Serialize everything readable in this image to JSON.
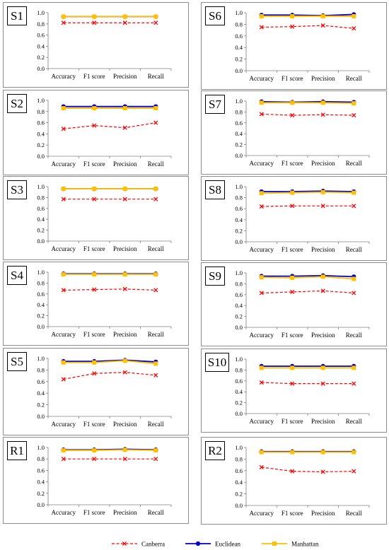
{
  "colors": {
    "canberra": "#ff0000",
    "euclidean": "#0000cc",
    "manhattan": "#ffc000"
  },
  "legend": [
    "Canberra",
    "Euclidean",
    "Manhattan"
  ],
  "chart_data": [
    {
      "type": "line",
      "title": "S1",
      "categories": [
        "Accuracy",
        "F1 score",
        "Precision",
        "Recall"
      ],
      "ylim": [
        0,
        1
      ],
      "yticks": [
        "0.0",
        "0.2",
        "0.4",
        "0.6",
        "0.8",
        "1.0"
      ],
      "series": [
        {
          "name": "Canberra",
          "values": [
            0.82,
            0.82,
            0.82,
            0.82
          ]
        },
        {
          "name": "Euclidean",
          "values": [
            0.93,
            0.93,
            0.93,
            0.93
          ]
        },
        {
          "name": "Manhattan",
          "values": [
            0.93,
            0.93,
            0.93,
            0.93
          ]
        }
      ]
    },
    {
      "type": "line",
      "title": "S6",
      "categories": [
        "Accuracy",
        "F1 score",
        "Precision",
        "Recall"
      ],
      "ylim": [
        0,
        1
      ],
      "yticks": [
        "0.0",
        "0.2",
        "0.4",
        "0.6",
        "0.8",
        "1.0"
      ],
      "series": [
        {
          "name": "Canberra",
          "values": [
            0.75,
            0.76,
            0.78,
            0.73
          ]
        },
        {
          "name": "Euclidean",
          "values": [
            0.96,
            0.96,
            0.95,
            0.97
          ]
        },
        {
          "name": "Manhattan",
          "values": [
            0.94,
            0.94,
            0.94,
            0.94
          ]
        }
      ]
    },
    {
      "type": "line",
      "title": "S2",
      "categories": [
        "Accuracy",
        "F1 score",
        "Precision",
        "Recall"
      ],
      "ylim": [
        0,
        1
      ],
      "yticks": [
        "0.0",
        "0.2",
        "0.4",
        "0.6",
        "0.8",
        "1.0"
      ],
      "series": [
        {
          "name": "Canberra",
          "values": [
            0.49,
            0.55,
            0.51,
            0.6
          ]
        },
        {
          "name": "Euclidean",
          "values": [
            0.89,
            0.89,
            0.89,
            0.89
          ]
        },
        {
          "name": "Manhattan",
          "values": [
            0.86,
            0.86,
            0.86,
            0.86
          ]
        }
      ]
    },
    {
      "type": "line",
      "title": "S7",
      "categories": [
        "Accuracy",
        "F1 score",
        "Precision",
        "Recall"
      ],
      "ylim": [
        0,
        1
      ],
      "yticks": [
        "0.0",
        "0.2",
        "0.4",
        "0.6",
        "0.8",
        "1.0"
      ],
      "series": [
        {
          "name": "Canberra",
          "values": [
            0.76,
            0.74,
            0.75,
            0.74
          ]
        },
        {
          "name": "Euclidean",
          "values": [
            0.99,
            0.98,
            0.99,
            0.98
          ]
        },
        {
          "name": "Manhattan",
          "values": [
            0.97,
            0.97,
            0.97,
            0.96
          ]
        }
      ]
    },
    {
      "type": "line",
      "title": "S3",
      "categories": [
        "Accuracy",
        "F1 score",
        "Precision",
        "Recall"
      ],
      "ylim": [
        0,
        1
      ],
      "yticks": [
        "0.0",
        "0.2",
        "0.4",
        "0.6",
        "0.8",
        "1.0"
      ],
      "series": [
        {
          "name": "Canberra",
          "values": [
            0.77,
            0.77,
            0.77,
            0.77
          ]
        },
        {
          "name": "Euclidean",
          "values": [
            0.96,
            0.96,
            0.96,
            0.96
          ]
        },
        {
          "name": "Manhattan",
          "values": [
            0.96,
            0.96,
            0.96,
            0.96
          ]
        }
      ]
    },
    {
      "type": "line",
      "title": "S8",
      "categories": [
        "Accuracy",
        "F1 score",
        "Precision",
        "Recall"
      ],
      "ylim": [
        0,
        1
      ],
      "yticks": [
        "0.0",
        "0.2",
        "0.4",
        "0.6",
        "0.8",
        "1.0"
      ],
      "series": [
        {
          "name": "Canberra",
          "values": [
            0.64,
            0.65,
            0.65,
            0.65
          ]
        },
        {
          "name": "Euclidean",
          "values": [
            0.91,
            0.91,
            0.92,
            0.91
          ]
        },
        {
          "name": "Manhattan",
          "values": [
            0.88,
            0.89,
            0.9,
            0.89
          ]
        }
      ]
    },
    {
      "type": "line",
      "title": "S4",
      "categories": [
        "Accuracy",
        "F1 score",
        "Precision",
        "Recall"
      ],
      "ylim": [
        0,
        1
      ],
      "yticks": [
        "0.0",
        "0.2",
        "0.4",
        "0.6",
        "0.8",
        "1.0"
      ],
      "series": [
        {
          "name": "Canberra",
          "values": [
            0.67,
            0.68,
            0.69,
            0.67
          ]
        },
        {
          "name": "Euclidean",
          "values": [
            0.97,
            0.97,
            0.97,
            0.97
          ]
        },
        {
          "name": "Manhattan",
          "values": [
            0.96,
            0.96,
            0.96,
            0.96
          ]
        }
      ]
    },
    {
      "type": "line",
      "title": "S9",
      "categories": [
        "Accuracy",
        "F1 score",
        "Precision",
        "Recall"
      ],
      "ylim": [
        0,
        1
      ],
      "yticks": [
        "0.0",
        "0.2",
        "0.4",
        "0.6",
        "0.8",
        "1.0"
      ],
      "series": [
        {
          "name": "Canberra",
          "values": [
            0.63,
            0.65,
            0.67,
            0.63
          ]
        },
        {
          "name": "Euclidean",
          "values": [
            0.94,
            0.94,
            0.95,
            0.93
          ]
        },
        {
          "name": "Manhattan",
          "values": [
            0.92,
            0.91,
            0.93,
            0.89
          ]
        }
      ]
    },
    {
      "type": "line",
      "title": "S5",
      "categories": [
        "Accuracy",
        "F1 score",
        "Precision",
        "Recall"
      ],
      "ylim": [
        0,
        1
      ],
      "yticks": [
        "0.0",
        "0.2",
        "0.4",
        "0.6",
        "0.8",
        "1.0"
      ],
      "series": [
        {
          "name": "Canberra",
          "values": [
            0.64,
            0.74,
            0.76,
            0.71
          ]
        },
        {
          "name": "Euclidean",
          "values": [
            0.95,
            0.95,
            0.97,
            0.94
          ]
        },
        {
          "name": "Manhattan",
          "values": [
            0.93,
            0.93,
            0.96,
            0.91
          ]
        }
      ]
    },
    {
      "type": "line",
      "title": "S10",
      "categories": [
        "Accuracy",
        "F1 score",
        "Precision",
        "Recall"
      ],
      "ylim": [
        0,
        1
      ],
      "yticks": [
        "0.0",
        "0.2",
        "0.4",
        "0.6",
        "0.8",
        "1.0"
      ],
      "series": [
        {
          "name": "Canberra",
          "values": [
            0.57,
            0.55,
            0.55,
            0.55
          ]
        },
        {
          "name": "Euclidean",
          "values": [
            0.87,
            0.87,
            0.87,
            0.87
          ]
        },
        {
          "name": "Manhattan",
          "values": [
            0.84,
            0.84,
            0.84,
            0.84
          ]
        }
      ]
    },
    {
      "type": "line",
      "title": "R1",
      "categories": [
        "Accuracy",
        "F1 score",
        "Precision",
        "Recall"
      ],
      "ylim": [
        0,
        1
      ],
      "yticks": [
        "0.0",
        "0.2",
        "0.4",
        "0.6",
        "0.8",
        "1.0"
      ],
      "series": [
        {
          "name": "Canberra",
          "values": [
            0.8,
            0.8,
            0.8,
            0.8
          ]
        },
        {
          "name": "Euclidean",
          "values": [
            0.96,
            0.96,
            0.97,
            0.96
          ]
        },
        {
          "name": "Manhattan",
          "values": [
            0.95,
            0.95,
            0.96,
            0.95
          ]
        }
      ]
    },
    {
      "type": "line",
      "title": "R2",
      "categories": [
        "Accuracy",
        "F1 score",
        "Precision",
        "Recall"
      ],
      "ylim": [
        0,
        1
      ],
      "yticks": [
        "0.0",
        "0.2",
        "0.4",
        "0.6",
        "0.8",
        "1.0"
      ],
      "series": [
        {
          "name": "Canberra",
          "values": [
            0.66,
            0.59,
            0.58,
            0.59
          ]
        },
        {
          "name": "Euclidean",
          "values": [
            0.93,
            0.93,
            0.93,
            0.93
          ]
        },
        {
          "name": "Manhattan",
          "values": [
            0.92,
            0.92,
            0.92,
            0.92
          ]
        }
      ]
    }
  ]
}
